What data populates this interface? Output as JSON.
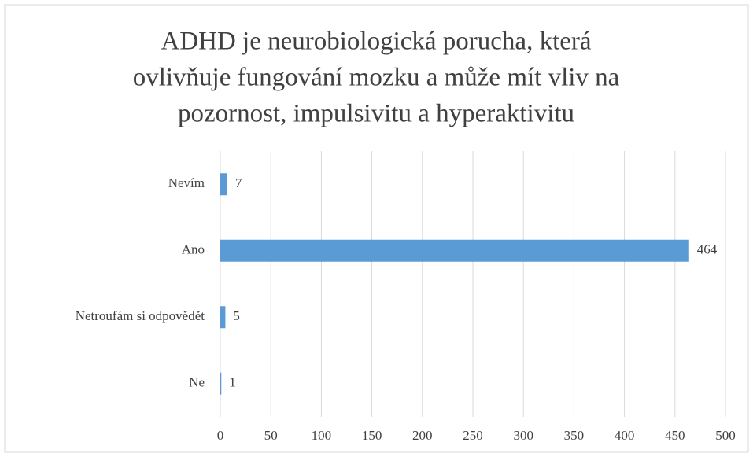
{
  "chart_data": {
    "type": "bar",
    "orientation": "horizontal",
    "title": [
      "ADHD je neurobiologická porucha, která",
      "ovlivňuje fungování mozku a může mít vliv na",
      "pozornost, impulsivitu a hyperaktivitu"
    ],
    "categories": [
      "Nevím",
      "Ano",
      "Netroufám si odpovědět",
      "Ne"
    ],
    "values": [
      7,
      464,
      5,
      1
    ],
    "color": "#5b9bd5",
    "xlim": [
      0,
      500
    ],
    "xticks": [
      0,
      50,
      100,
      150,
      200,
      250,
      300,
      350,
      400,
      450,
      500
    ],
    "grid": true
  }
}
